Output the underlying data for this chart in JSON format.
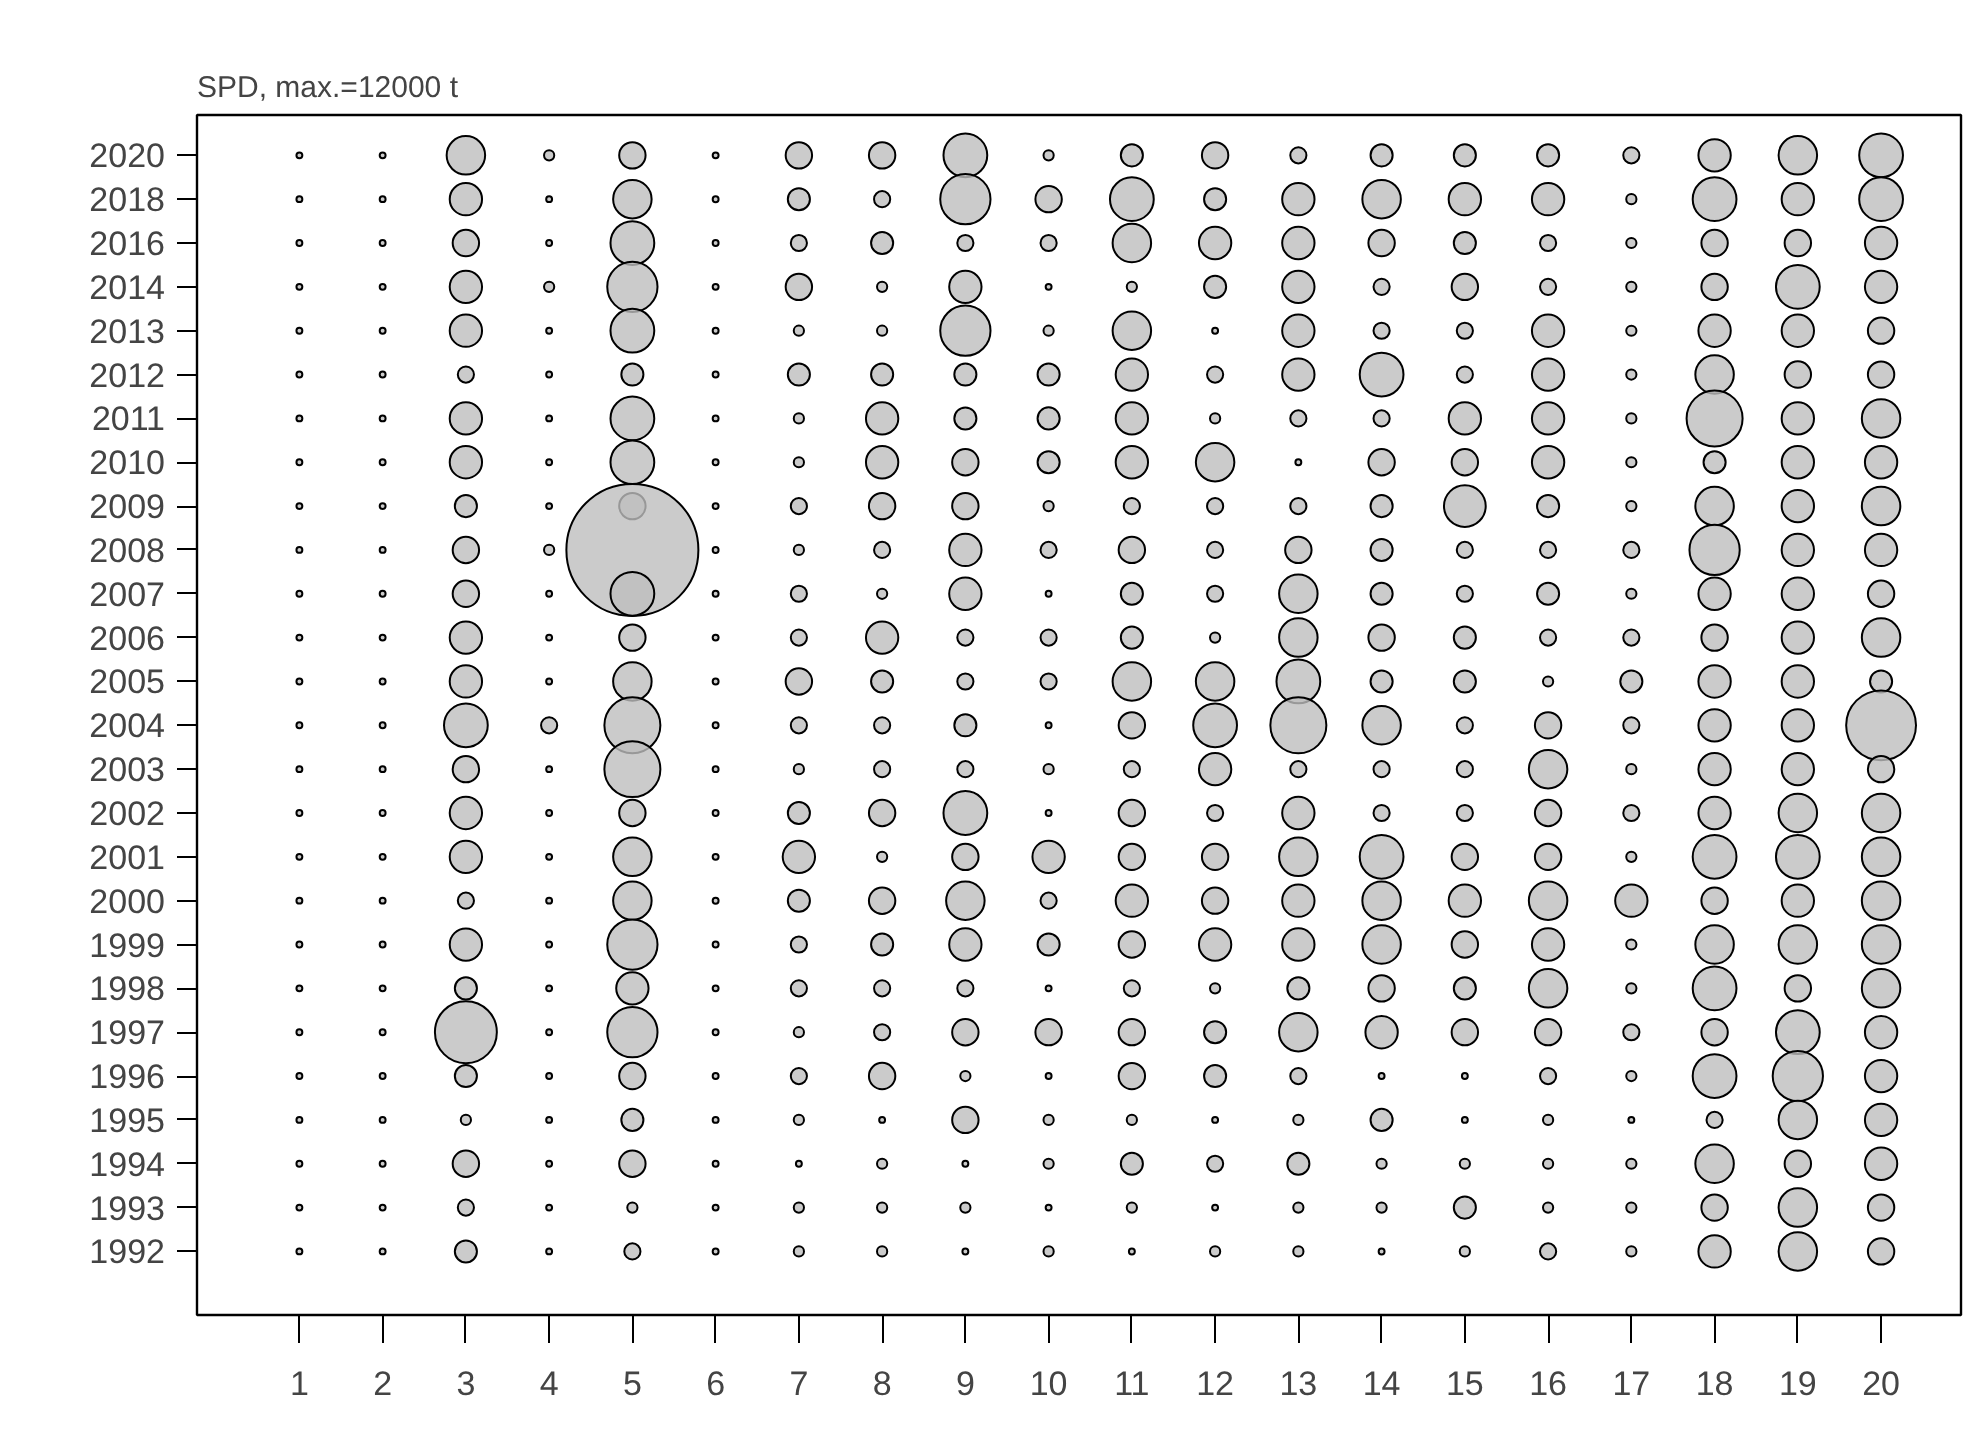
{
  "chart_data": {
    "type": "bubble",
    "title": "SPD, max.=12000 t",
    "orientation": "horizontal",
    "categories": [
      "2020",
      "2018",
      "2016",
      "2014",
      "2013",
      "2012",
      "2011",
      "2010",
      "2009",
      "2008",
      "2007",
      "2006",
      "2005",
      "2004",
      "2003",
      "2002",
      "2001",
      "2000",
      "1999",
      "1998",
      "1997",
      "1996",
      "1995",
      "1994",
      "1993",
      "1992"
    ],
    "xlim": [
      -0.23,
      20.96
    ],
    "xticks": [
      1,
      2,
      3,
      4,
      5,
      6,
      7,
      8,
      9,
      10,
      11,
      12,
      13,
      14,
      15,
      16,
      17,
      18,
      19,
      20
    ],
    "grid": false,
    "series": [
      {
        "color": "#bebebe",
        "values": [
          1,
          1,
          1,
          1,
          1,
          1,
          1,
          1,
          1,
          1,
          1,
          1,
          1,
          1,
          1,
          1,
          1,
          1,
          1,
          1,
          1,
          1,
          1,
          1,
          1,
          1
        ],
        "sizes": [
          0.002,
          0.002,
          0.002,
          0.002,
          0.002,
          0.002,
          0.002,
          0.002,
          0.002,
          0.002,
          0.002,
          0.002,
          0.002,
          0.002,
          0.002,
          0.002,
          0.002,
          0.002,
          0.002,
          0.002,
          0.002,
          0.002,
          0.002,
          0.002,
          0.002,
          0.002
        ]
      },
      {
        "color": "#bebebe",
        "values": [
          2,
          2,
          2,
          2,
          2,
          2,
          2,
          2,
          2,
          2,
          2,
          2,
          2,
          2,
          2,
          2,
          2,
          2,
          2,
          2,
          2,
          2,
          2,
          2,
          2,
          2
        ],
        "sizes": [
          0.002,
          0.002,
          0.002,
          0.002,
          0.002,
          0.002,
          0.002,
          0.002,
          0.002,
          0.002,
          0.002,
          0.002,
          0.002,
          0.002,
          0.002,
          0.002,
          0.002,
          0.002,
          0.002,
          0.002,
          0.002,
          0.002,
          0.002,
          0.002,
          0.002,
          0.002
        ]
      },
      {
        "color": "#bebebe",
        "values": [
          3,
          3,
          3,
          3,
          3,
          3,
          3,
          3,
          3,
          3,
          3,
          3,
          3,
          3,
          3,
          3,
          3,
          3,
          3,
          3,
          3,
          3,
          3,
          3,
          3,
          3
        ],
        "sizes": [
          0.085,
          0.06,
          0.04,
          0.06,
          0.06,
          0.015,
          0.06,
          0.06,
          0.028,
          0.04,
          0.04,
          0.06,
          0.06,
          0.11,
          0.04,
          0.06,
          0.06,
          0.015,
          0.06,
          0.028,
          0.22,
          0.028,
          0.006,
          0.04,
          0.015,
          0.028
        ]
      },
      {
        "color": "#bebebe",
        "values": [
          4,
          4,
          4,
          4,
          4,
          4,
          4,
          4,
          4,
          4,
          4,
          4,
          4,
          4,
          4,
          4,
          4,
          4,
          4,
          4,
          4,
          4,
          4,
          4,
          4,
          4
        ],
        "sizes": [
          0.006,
          0.002,
          0.002,
          0.006,
          0.002,
          0.002,
          0.002,
          0.002,
          0.002,
          0.006,
          0.002,
          0.002,
          0.002,
          0.015,
          0.002,
          0.002,
          0.002,
          0.002,
          0.002,
          0.002,
          0.002,
          0.002,
          0.002,
          0.002,
          0.002,
          0.002
        ]
      },
      {
        "color": "#bebebe",
        "values": [
          5,
          5,
          5,
          5,
          5,
          5,
          5,
          5,
          5,
          5,
          5,
          5,
          5,
          5,
          5,
          5,
          5,
          5,
          5,
          5,
          5,
          5,
          5,
          5,
          5,
          5
        ],
        "sizes": [
          0.04,
          0.085,
          0.11,
          0.145,
          0.11,
          0.028,
          0.11,
          0.11,
          0.04,
          1,
          0.11,
          0.04,
          0.085,
          0.18,
          0.18,
          0.04,
          0.085,
          0.085,
          0.145,
          0.06,
          0.145,
          0.04,
          0.028,
          0.04,
          0.006,
          0.015
        ]
      },
      {
        "color": "#bebebe",
        "values": [
          6,
          6,
          6,
          6,
          6,
          6,
          6,
          6,
          6,
          6,
          6,
          6,
          6,
          6,
          6,
          6,
          6,
          6,
          6,
          6,
          6,
          6,
          6,
          6,
          6,
          6
        ],
        "sizes": [
          0.002,
          0.002,
          0.002,
          0.002,
          0.002,
          0.002,
          0.002,
          0.002,
          0.002,
          0.002,
          0.002,
          0.002,
          0.002,
          0.002,
          0.002,
          0.002,
          0.002,
          0.002,
          0.002,
          0.002,
          0.002,
          0.002,
          0.002,
          0.002,
          0.002,
          0.002
        ]
      },
      {
        "color": "#bebebe",
        "values": [
          7,
          7,
          7,
          7,
          7,
          7,
          7,
          7,
          7,
          7,
          7,
          7,
          7,
          7,
          7,
          7,
          7,
          7,
          7,
          7,
          7,
          7,
          7,
          7,
          7,
          7
        ],
        "sizes": [
          0.04,
          0.028,
          0.015,
          0.04,
          0.006,
          0.028,
          0.006,
          0.006,
          0.015,
          0.006,
          0.015,
          0.015,
          0.04,
          0.015,
          0.006,
          0.028,
          0.06,
          0.028,
          0.015,
          0.015,
          0.006,
          0.015,
          0.006,
          0.002,
          0.006,
          0.006
        ]
      },
      {
        "color": "#bebebe",
        "values": [
          8,
          8,
          8,
          8,
          8,
          8,
          8,
          8,
          8,
          8,
          8,
          8,
          8,
          8,
          8,
          8,
          8,
          8,
          8,
          8,
          8,
          8,
          8,
          8,
          8,
          8
        ],
        "sizes": [
          0.04,
          0.015,
          0.028,
          0.006,
          0.006,
          0.028,
          0.06,
          0.06,
          0.04,
          0.015,
          0.006,
          0.06,
          0.028,
          0.015,
          0.015,
          0.04,
          0.006,
          0.04,
          0.028,
          0.015,
          0.015,
          0.04,
          0.002,
          0.006,
          0.006,
          0.006
        ]
      },
      {
        "color": "#bebebe",
        "values": [
          9,
          9,
          9,
          9,
          9,
          9,
          9,
          9,
          9,
          9,
          9,
          9,
          9,
          9,
          9,
          9,
          9,
          9,
          9,
          9,
          9,
          9,
          9,
          9,
          9,
          9
        ],
        "sizes": [
          0.11,
          0.145,
          0.015,
          0.06,
          0.145,
          0.028,
          0.028,
          0.04,
          0.04,
          0.06,
          0.06,
          0.015,
          0.015,
          0.028,
          0.015,
          0.11,
          0.04,
          0.085,
          0.06,
          0.015,
          0.04,
          0.006,
          0.04,
          0.002,
          0.006,
          0.002
        ]
      },
      {
        "color": "#bebebe",
        "values": [
          10,
          10,
          10,
          10,
          10,
          10,
          10,
          10,
          10,
          10,
          10,
          10,
          10,
          10,
          10,
          10,
          10,
          10,
          10,
          10,
          10,
          10,
          10,
          10,
          10,
          10
        ],
        "sizes": [
          0.006,
          0.04,
          0.015,
          0.002,
          0.006,
          0.028,
          0.028,
          0.028,
          0.006,
          0.015,
          0.002,
          0.015,
          0.015,
          0.002,
          0.006,
          0.002,
          0.06,
          0.015,
          0.028,
          0.002,
          0.04,
          0.002,
          0.006,
          0.006,
          0.002,
          0.006
        ]
      },
      {
        "color": "#bebebe",
        "values": [
          11,
          11,
          11,
          11,
          11,
          11,
          11,
          11,
          11,
          11,
          11,
          11,
          11,
          11,
          11,
          11,
          11,
          11,
          11,
          11,
          11,
          11,
          11,
          11,
          11,
          11
        ],
        "sizes": [
          0.028,
          0.11,
          0.085,
          0.006,
          0.085,
          0.06,
          0.06,
          0.06,
          0.015,
          0.04,
          0.028,
          0.028,
          0.085,
          0.04,
          0.015,
          0.04,
          0.04,
          0.06,
          0.04,
          0.015,
          0.04,
          0.04,
          0.006,
          0.028,
          0.006,
          0.002
        ]
      },
      {
        "color": "#bebebe",
        "values": [
          12,
          12,
          12,
          12,
          12,
          12,
          12,
          12,
          12,
          12,
          12,
          12,
          12,
          12,
          12,
          12,
          12,
          12,
          12,
          12,
          12,
          12,
          12,
          12,
          12,
          12
        ],
        "sizes": [
          0.04,
          0.028,
          0.06,
          0.028,
          0.002,
          0.015,
          0.006,
          0.085,
          0.015,
          0.015,
          0.015,
          0.006,
          0.085,
          0.11,
          0.06,
          0.015,
          0.04,
          0.04,
          0.06,
          0.006,
          0.028,
          0.028,
          0.002,
          0.015,
          0.002,
          0.006
        ]
      },
      {
        "color": "#bebebe",
        "values": [
          13,
          13,
          13,
          13,
          13,
          13,
          13,
          13,
          13,
          13,
          13,
          13,
          13,
          13,
          13,
          13,
          13,
          13,
          13,
          13,
          13,
          13,
          13,
          13,
          13,
          13
        ],
        "sizes": [
          0.015,
          0.06,
          0.06,
          0.06,
          0.06,
          0.06,
          0.015,
          0.002,
          0.015,
          0.04,
          0.085,
          0.085,
          0.11,
          0.18,
          0.015,
          0.06,
          0.085,
          0.06,
          0.06,
          0.028,
          0.085,
          0.015,
          0.006,
          0.028,
          0.006,
          0.006
        ]
      },
      {
        "color": "#bebebe",
        "values": [
          14,
          14,
          14,
          14,
          14,
          14,
          14,
          14,
          14,
          14,
          14,
          14,
          14,
          14,
          14,
          14,
          14,
          14,
          14,
          14,
          14,
          14,
          14,
          14,
          14,
          14
        ],
        "sizes": [
          0.028,
          0.085,
          0.04,
          0.015,
          0.015,
          0.11,
          0.015,
          0.04,
          0.028,
          0.028,
          0.028,
          0.04,
          0.028,
          0.085,
          0.015,
          0.015,
          0.11,
          0.085,
          0.085,
          0.04,
          0.06,
          0.002,
          0.028,
          0.006,
          0.006,
          0.002
        ]
      },
      {
        "color": "#bebebe",
        "values": [
          15,
          15,
          15,
          15,
          15,
          15,
          15,
          15,
          15,
          15,
          15,
          15,
          15,
          15,
          15,
          15,
          15,
          15,
          15,
          15,
          15,
          15,
          15,
          15,
          15,
          15
        ],
        "sizes": [
          0.028,
          0.06,
          0.028,
          0.04,
          0.015,
          0.015,
          0.06,
          0.04,
          0.1,
          0.015,
          0.015,
          0.028,
          0.028,
          0.015,
          0.015,
          0.015,
          0.04,
          0.06,
          0.04,
          0.028,
          0.04,
          0.002,
          0.002,
          0.006,
          0.028,
          0.006
        ]
      },
      {
        "color": "#bebebe",
        "values": [
          16,
          16,
          16,
          16,
          16,
          16,
          16,
          16,
          16,
          16,
          16,
          16,
          16,
          16,
          16,
          16,
          16,
          16,
          16,
          16,
          16,
          16,
          16,
          16,
          16,
          16
        ],
        "sizes": [
          0.028,
          0.06,
          0.015,
          0.015,
          0.06,
          0.06,
          0.06,
          0.06,
          0.028,
          0.015,
          0.028,
          0.015,
          0.006,
          0.04,
          0.085,
          0.04,
          0.04,
          0.085,
          0.06,
          0.085,
          0.04,
          0.015,
          0.006,
          0.006,
          0.006,
          0.015
        ]
      },
      {
        "color": "#bebebe",
        "values": [
          17,
          17,
          17,
          17,
          17,
          17,
          17,
          17,
          17,
          17,
          17,
          17,
          17,
          17,
          17,
          17,
          17,
          17,
          17,
          17,
          17,
          17,
          17,
          17,
          17,
          17
        ],
        "sizes": [
          0.015,
          0.006,
          0.006,
          0.006,
          0.006,
          0.006,
          0.006,
          0.006,
          0.006,
          0.015,
          0.006,
          0.015,
          0.028,
          0.015,
          0.006,
          0.015,
          0.006,
          0.06,
          0.006,
          0.006,
          0.015,
          0.006,
          0.002,
          0.006,
          0.006,
          0.006
        ]
      },
      {
        "color": "#bebebe",
        "values": [
          18,
          18,
          18,
          18,
          18,
          18,
          18,
          18,
          18,
          18,
          18,
          18,
          18,
          18,
          18,
          18,
          18,
          18,
          18,
          18,
          18,
          18,
          18,
          18,
          18,
          18
        ],
        "sizes": [
          0.06,
          0.11,
          0.04,
          0.04,
          0.06,
          0.085,
          0.18,
          0.028,
          0.085,
          0.145,
          0.06,
          0.04,
          0.06,
          0.06,
          0.06,
          0.06,
          0.11,
          0.04,
          0.085,
          0.11,
          0.04,
          0.11,
          0.015,
          0.085,
          0.04,
          0.06
        ]
      },
      {
        "color": "#bebebe",
        "values": [
          19,
          19,
          19,
          19,
          19,
          19,
          19,
          19,
          19,
          19,
          19,
          19,
          19,
          19,
          19,
          19,
          19,
          19,
          19,
          19,
          19,
          19,
          19,
          19,
          19,
          19
        ],
        "sizes": [
          0.085,
          0.06,
          0.04,
          0.11,
          0.06,
          0.04,
          0.06,
          0.06,
          0.06,
          0.06,
          0.06,
          0.06,
          0.06,
          0.06,
          0.06,
          0.085,
          0.11,
          0.06,
          0.085,
          0.04,
          0.11,
          0.145,
          0.085,
          0.04,
          0.085,
          0.085
        ]
      },
      {
        "color": "#bebebe",
        "values": [
          20,
          20,
          20,
          20,
          20,
          20,
          20,
          20,
          20,
          20,
          20,
          20,
          20,
          20,
          20,
          20,
          20,
          20,
          20,
          20,
          20,
          20,
          20,
          20,
          20,
          20
        ],
        "sizes": [
          0.11,
          0.11,
          0.06,
          0.06,
          0.04,
          0.04,
          0.085,
          0.06,
          0.085,
          0.06,
          0.04,
          0.085,
          0.028,
          0.28,
          0.04,
          0.085,
          0.085,
          0.085,
          0.085,
          0.085,
          0.06,
          0.06,
          0.06,
          0.06,
          0.04,
          0.04
        ]
      }
    ]
  }
}
